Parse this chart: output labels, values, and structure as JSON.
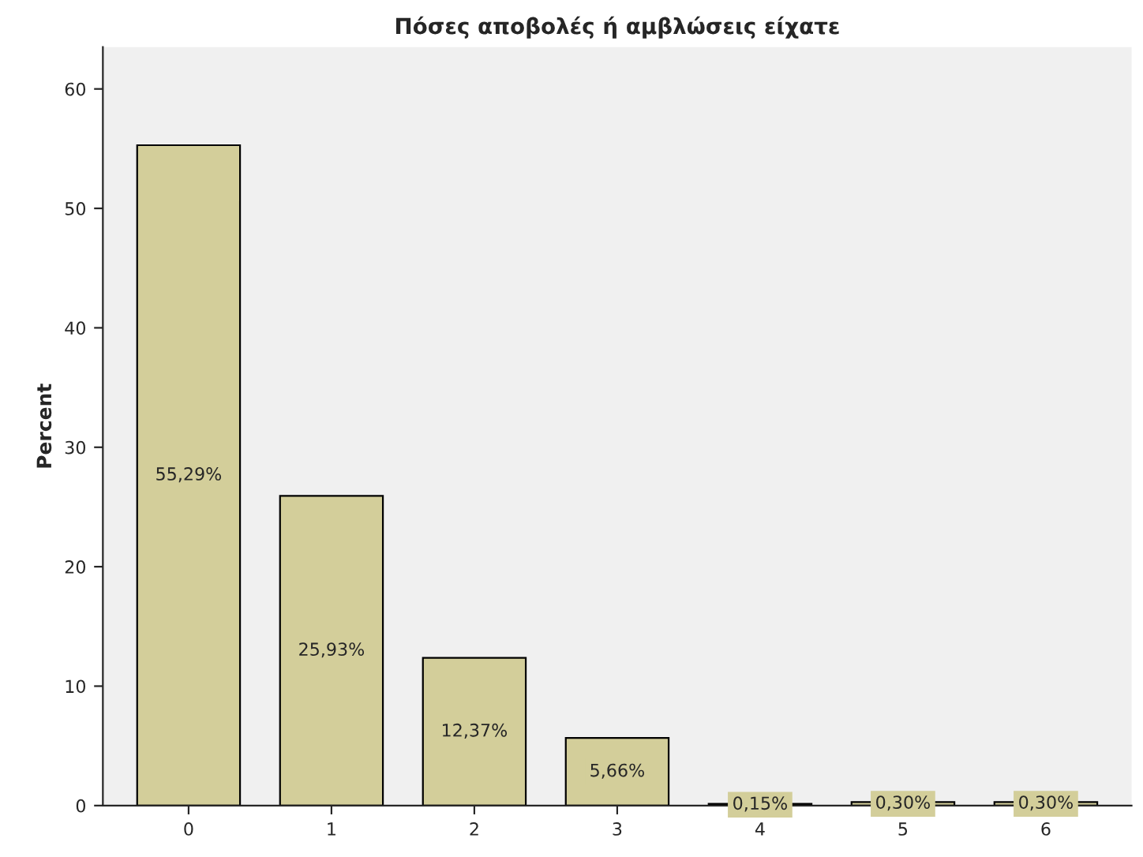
{
  "chart_data": {
    "type": "bar",
    "title": "Πόσες αποβολές ή αμβλώσεις είχατε",
    "ylabel": "Percent",
    "categories": [
      "0",
      "1",
      "2",
      "3",
      "4",
      "5",
      "6"
    ],
    "values": [
      55.29,
      25.93,
      12.37,
      5.66,
      0.15,
      0.3,
      0.3
    ],
    "value_labels": [
      "55,29%",
      "25,93%",
      "12,37%",
      "5,66%",
      "0,15%",
      "0,30%",
      "0,30%"
    ],
    "color": "#d3ce9a",
    "ylim": [
      0,
      63.5
    ],
    "yticks": [
      0,
      10,
      20,
      30,
      40,
      50,
      60
    ],
    "grid": false
  }
}
